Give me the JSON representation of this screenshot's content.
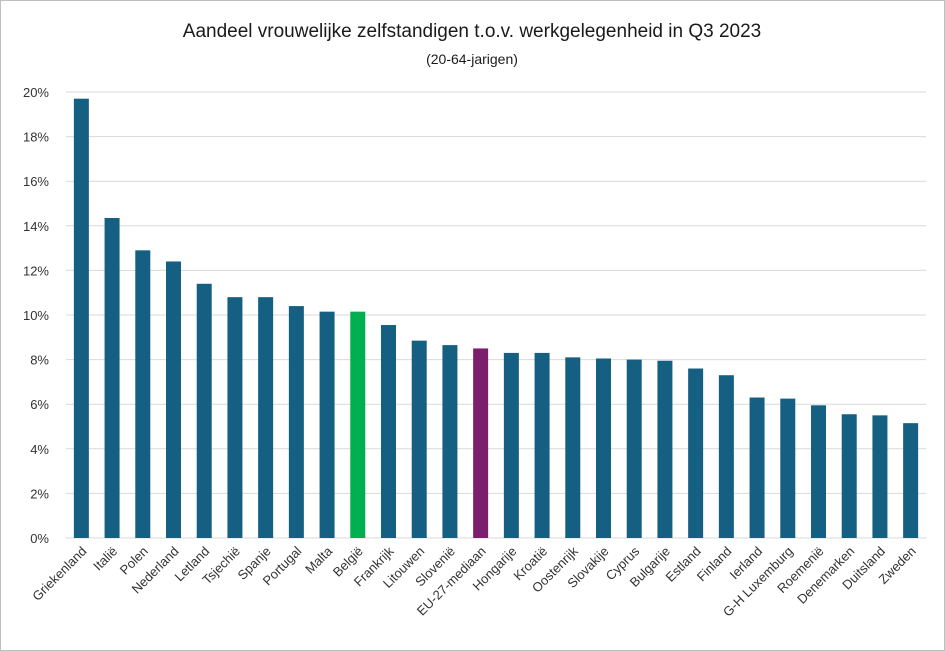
{
  "chart_data": {
    "type": "bar",
    "title": "Aandeel vrouwelijke zelfstandigen t.o.v. werkgelegenheid in Q3 2023",
    "subtitle": "(20-64-jarigen)",
    "xlabel": "",
    "ylabel": "",
    "ylim": [
      0,
      20
    ],
    "yticks": [
      "0%",
      "2%",
      "4%",
      "6%",
      "8%",
      "10%",
      "12%",
      "14%",
      "16%",
      "18%",
      "20%"
    ],
    "grid": true,
    "legend": "none",
    "categories": [
      "Griekenland",
      "Italië",
      "Polen",
      "Nederland",
      "Letland",
      "Tsjechië",
      "Spanje",
      "Portugal",
      "Malta",
      "België",
      "Frankrijk",
      "Litouwen",
      "Slovenië",
      "EU-27-mediaan",
      "Hongarije",
      "Kroatië",
      "Oostenrijk",
      "Slovakije",
      "Cyprus",
      "Bulgarije",
      "Estland",
      "Finland",
      "Ierland",
      "G-H Luxemburg",
      "Roemenië",
      "Denemarken",
      "Duitsland",
      "Zweden"
    ],
    "values": [
      19.7,
      14.35,
      12.9,
      12.4,
      11.4,
      10.8,
      10.8,
      10.4,
      10.15,
      10.15,
      9.55,
      8.85,
      8.65,
      8.5,
      8.3,
      8.3,
      8.1,
      8.05,
      8.0,
      7.95,
      7.6,
      7.3,
      6.3,
      6.25,
      5.95,
      5.55,
      5.5,
      5.15
    ],
    "colors": {
      "default": "#156082",
      "highlight_belgie": "#00b050",
      "highlight_eu": "#7b1e6e",
      "grid": "#d9d9d9"
    },
    "highlights": {
      "België": "#00b050",
      "EU-27-mediaan": "#7b1e6e"
    }
  }
}
